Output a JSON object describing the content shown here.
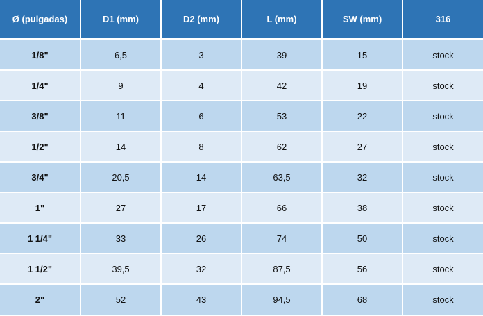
{
  "colors": {
    "header": "#2E74B5",
    "row_odd": "#BDD7EE",
    "row_even": "#DEEAF6"
  },
  "headers": [
    "Ø (pulgadas)",
    "D1 (mm)",
    "D2 (mm)",
    "L (mm)",
    "SW (mm)",
    "316"
  ],
  "rows": [
    [
      "1/8\"",
      "6,5",
      "3",
      "39",
      "15",
      "stock"
    ],
    [
      "1/4\"",
      "9",
      "4",
      "42",
      "19",
      "stock"
    ],
    [
      "3/8\"",
      "11",
      "6",
      "53",
      "22",
      "stock"
    ],
    [
      "1/2\"",
      "14",
      "8",
      "62",
      "27",
      "stock"
    ],
    [
      "3/4\"",
      "20,5",
      "14",
      "63,5",
      "32",
      "stock"
    ],
    [
      "1\"",
      "27",
      "17",
      "66",
      "38",
      "stock"
    ],
    [
      "1 1/4\"",
      "33",
      "26",
      "74",
      "50",
      "stock"
    ],
    [
      "1 1/2\"",
      "39,5",
      "32",
      "87,5",
      "56",
      "stock"
    ],
    [
      "2\"",
      "52",
      "43",
      "94,5",
      "68",
      "stock"
    ]
  ]
}
